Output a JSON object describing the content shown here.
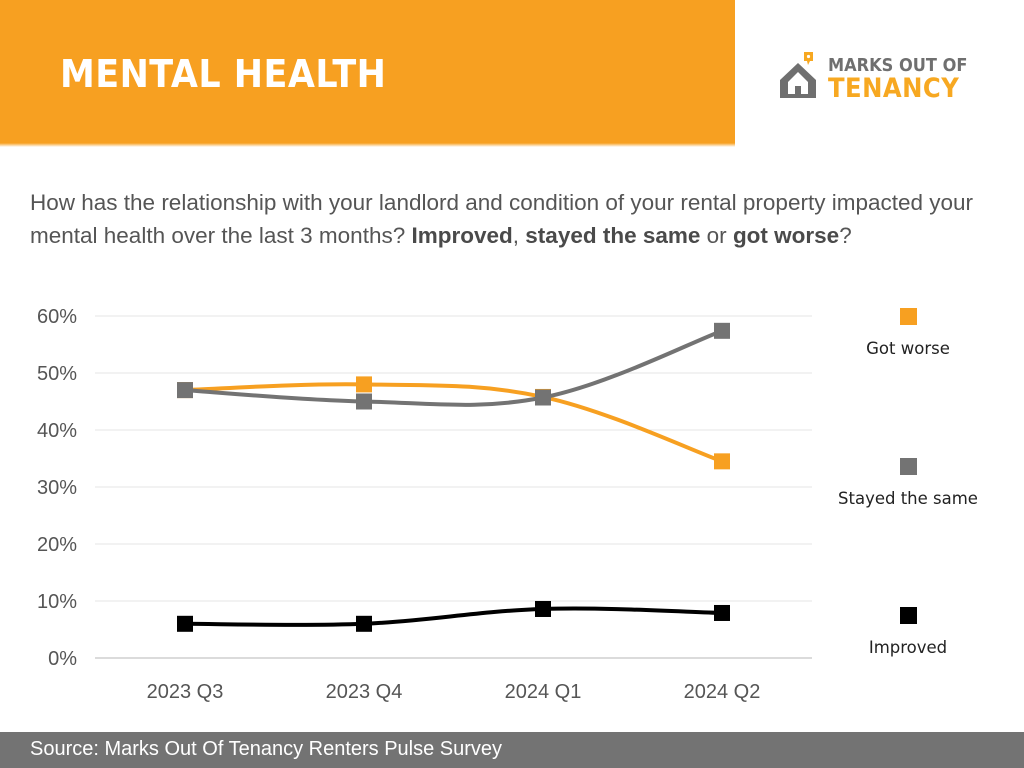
{
  "header": {
    "title": "MENTAL HEALTH",
    "logo": {
      "line1": "MARKS OUT OF",
      "line2": "TENANCY"
    }
  },
  "question": {
    "intro": "How has the relationship with your landlord and condition of your rental property impacted your mental health over the last 3 months?",
    "opt1": "Improved",
    "sep1": ",",
    "opt2": "stayed the same",
    "sep2": "or",
    "opt3": "got worse",
    "end": "?"
  },
  "colors": {
    "brand_orange": "#F7A021",
    "grey": "#737373",
    "black": "#000000"
  },
  "chart_data": {
    "type": "line",
    "title": "",
    "xlabel": "",
    "ylabel": "",
    "categories": [
      "2023 Q3",
      "2023 Q4",
      "2024 Q1",
      "2024 Q2"
    ],
    "y_ticks": [
      "0%",
      "10%",
      "20%",
      "30%",
      "40%",
      "50%",
      "60%"
    ],
    "ylim": [
      0,
      60
    ],
    "grid": true,
    "legend_position": "right",
    "series": [
      {
        "name": "Got worse",
        "color": "#F7A021",
        "values": [
          47,
          48,
          45.8,
          34.5
        ]
      },
      {
        "name": "Stayed the same",
        "color": "#737373",
        "values": [
          47,
          45,
          45.7,
          57.4
        ]
      },
      {
        "name": "Improved",
        "color": "#000000",
        "values": [
          6,
          6,
          8.6,
          7.9
        ]
      }
    ]
  },
  "footer": {
    "source": "Source: Marks Out Of Tenancy Renters Pulse Survey"
  }
}
